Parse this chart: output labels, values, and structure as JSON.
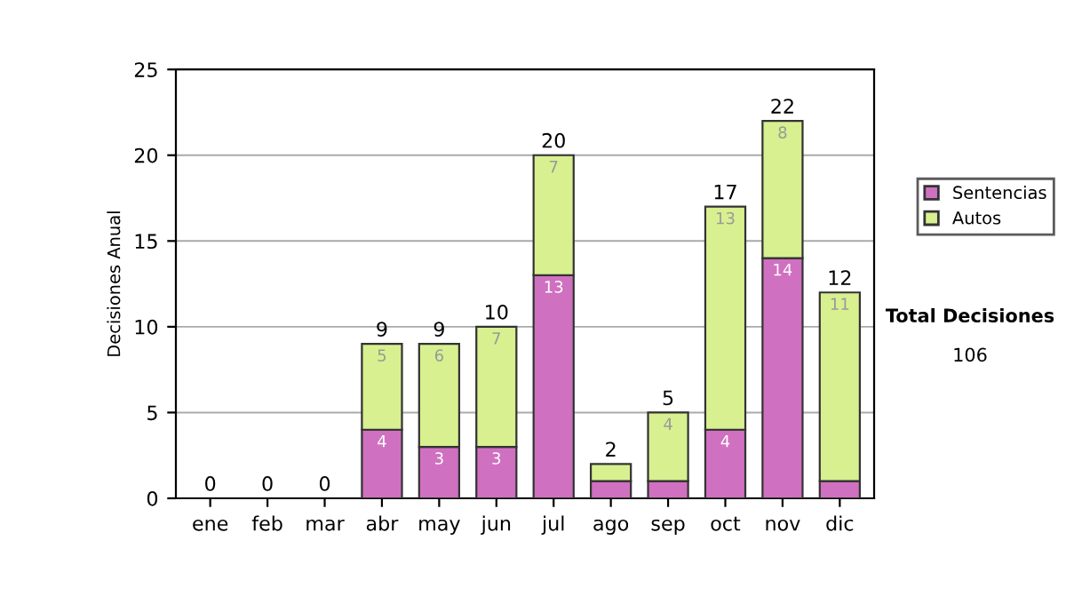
{
  "chart_data": {
    "type": "bar",
    "stacked": true,
    "ylabel": "Decisiones Anual",
    "categories": [
      "ene",
      "feb",
      "mar",
      "abr",
      "may",
      "jun",
      "jul",
      "ago",
      "sep",
      "oct",
      "nov",
      "dic"
    ],
    "series": [
      {
        "name": "Sentencias",
        "color": "#d070c0",
        "values": [
          0,
          0,
          0,
          4,
          3,
          3,
          13,
          1,
          1,
          4,
          14,
          1
        ],
        "value_labels": [
          null,
          null,
          null,
          "4",
          "3",
          "3",
          "13",
          null,
          null,
          "4",
          "14",
          null
        ]
      },
      {
        "name": "Autos",
        "color": "#d8f090",
        "values": [
          0,
          0,
          0,
          5,
          6,
          7,
          7,
          1,
          4,
          13,
          8,
          11
        ],
        "value_labels": [
          null,
          null,
          null,
          "5",
          "6",
          "7",
          "7",
          null,
          "4",
          "13",
          "8",
          "11"
        ]
      }
    ],
    "totals": [
      "0",
      "0",
      "0",
      "9",
      "9",
      "10",
      "20",
      "2",
      "5",
      "17",
      "22",
      "12"
    ],
    "ylim": [
      0,
      25
    ],
    "yticks": [
      0,
      5,
      10,
      15,
      20,
      25
    ],
    "grid": "y",
    "legend": "right",
    "annotations": [
      "Total Decisiones",
      "106"
    ]
  }
}
